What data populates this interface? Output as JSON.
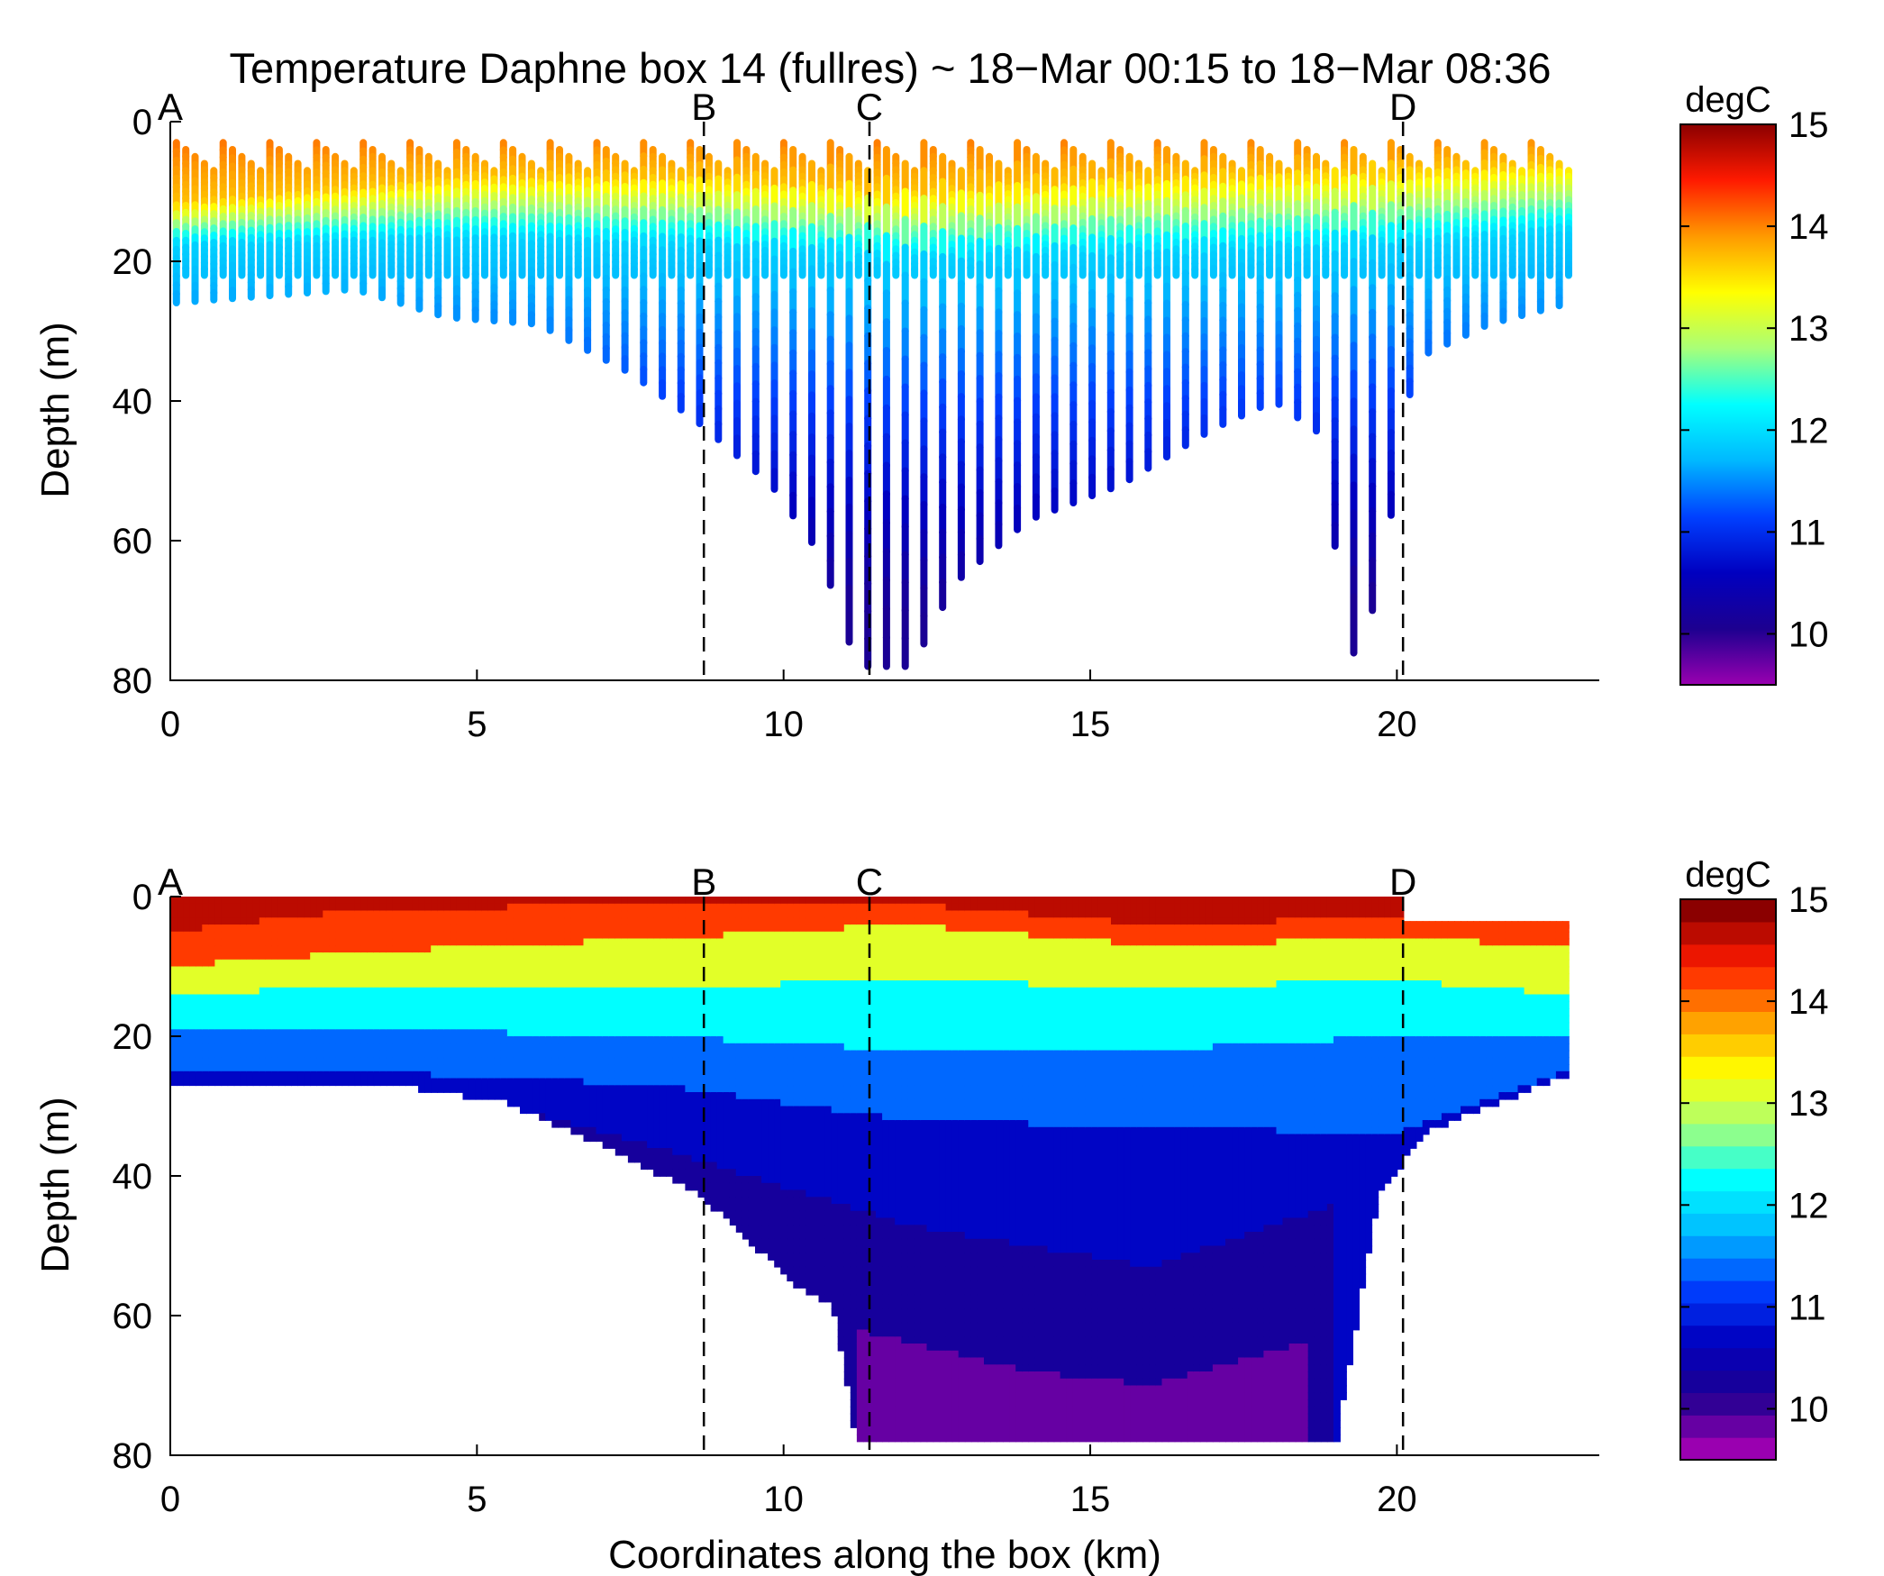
{
  "figure": {
    "title": "Temperature Daphne box 14 (fullres) ~ 18−Mar 00:15 to 18−Mar 08:36",
    "xlabel": "Coordinates along the box (km)",
    "ylabel": "Depth (m)"
  },
  "colors": {
    "jet_stops": [
      "#9a00b0",
      "#1d0090",
      "#0000c0",
      "#0040ff",
      "#00b8ff",
      "#00ffff",
      "#a8ff78",
      "#ffff00",
      "#ff9a00",
      "#ff1a00",
      "#8b0000"
    ],
    "section_lines": "#000000"
  },
  "chart_data": [
    {
      "type": "scatter",
      "panel": "top",
      "description_units": {
        "x": "km",
        "y": "m",
        "color": "degC"
      },
      "xlim": [
        0,
        23.3
      ],
      "ylim": [
        80,
        0
      ],
      "xticks": [
        "0",
        "5",
        "10",
        "15",
        "20"
      ],
      "yticks": [
        "0",
        "20",
        "40",
        "60",
        "80"
      ],
      "colorbar": {
        "label": "degC",
        "range": [
          9.5,
          15
        ],
        "ticks": [
          "15",
          "14",
          "13",
          "12",
          "11",
          "10"
        ],
        "continuous": true
      },
      "section_markers": [
        {
          "label": "A",
          "x": 0
        },
        {
          "label": "B",
          "x": 8.7
        },
        {
          "label": "C",
          "x": 11.4
        },
        {
          "label": "D",
          "x": 20.1
        }
      ],
      "profile_max_depth": [
        {
          "x": 0.0,
          "depth": 26
        },
        {
          "x": 3.0,
          "depth": 24
        },
        {
          "x": 4.5,
          "depth": 28
        },
        {
          "x": 6.0,
          "depth": 29
        },
        {
          "x": 7.5,
          "depth": 36
        },
        {
          "x": 8.6,
          "depth": 43
        },
        {
          "x": 9.8,
          "depth": 52
        },
        {
          "x": 10.6,
          "depth": 62
        },
        {
          "x": 11.2,
          "depth": 78
        },
        {
          "x": 12.1,
          "depth": 78
        },
        {
          "x": 12.8,
          "depth": 66
        },
        {
          "x": 14.0,
          "depth": 57
        },
        {
          "x": 15.5,
          "depth": 52
        },
        {
          "x": 17.0,
          "depth": 44
        },
        {
          "x": 18.0,
          "depth": 40
        },
        {
          "x": 18.8,
          "depth": 45
        },
        {
          "x": 19.2,
          "depth": 78
        },
        {
          "x": 19.7,
          "depth": 68
        },
        {
          "x": 20.3,
          "depth": 34
        },
        {
          "x": 21.5,
          "depth": 29
        },
        {
          "x": 22.8,
          "depth": 26
        }
      ],
      "thermocline": [
        {
          "x": 0,
          "warm_depth": 12,
          "cold_depth": 18
        },
        {
          "x": 5,
          "warm_depth": 8,
          "cold_depth": 17
        },
        {
          "x": 8.7,
          "warm_depth": 8,
          "cold_depth": 18
        },
        {
          "x": 12,
          "warm_depth": 10,
          "cold_depth": 20
        },
        {
          "x": 16,
          "warm_depth": 8,
          "cold_depth": 19
        },
        {
          "x": 20,
          "warm_depth": 7,
          "cold_depth": 18
        },
        {
          "x": 22.8,
          "warm_depth": 6,
          "cold_depth": 16
        }
      ],
      "surface_temp": 14.2,
      "bottom_temp": 10.1
    },
    {
      "type": "heatmap",
      "panel": "bottom",
      "description_units": {
        "x": "km",
        "y": "m",
        "color": "degC"
      },
      "xlim": [
        0,
        23.3
      ],
      "ylim": [
        80,
        0
      ],
      "xticks": [
        "0",
        "5",
        "10",
        "15",
        "20"
      ],
      "yticks": [
        "0",
        "20",
        "40",
        "60",
        "80"
      ],
      "colorbar": {
        "label": "degC",
        "range": [
          9.5,
          15
        ],
        "ticks": [
          "15",
          "14",
          "13",
          "12",
          "11",
          "10"
        ],
        "continuous": false
      },
      "section_markers": [
        {
          "label": "A",
          "x": 0
        },
        {
          "label": "B",
          "x": 8.7
        },
        {
          "label": "C",
          "x": 11.4
        },
        {
          "label": "D",
          "x": 20.1
        }
      ],
      "bottom_outline": [
        {
          "x": 0,
          "depth": 27
        },
        {
          "x": 4.0,
          "depth": 27
        },
        {
          "x": 5.5,
          "depth": 29
        },
        {
          "x": 7.0,
          "depth": 35
        },
        {
          "x": 8.6,
          "depth": 42
        },
        {
          "x": 10.2,
          "depth": 55
        },
        {
          "x": 10.8,
          "depth": 58
        },
        {
          "x": 11.2,
          "depth": 78
        },
        {
          "x": 19.0,
          "depth": 78
        },
        {
          "x": 19.2,
          "depth": 68
        },
        {
          "x": 19.7,
          "depth": 42
        },
        {
          "x": 20.5,
          "depth": 33
        },
        {
          "x": 22.8,
          "depth": 25
        }
      ],
      "isotherms": [
        {
          "temp": 14.5,
          "depth_at": [
            [
              0,
              5
            ],
            [
              3,
              2
            ],
            [
              8,
              1
            ],
            [
              12,
              1
            ],
            [
              16,
              4
            ],
            [
              20,
              3
            ],
            [
              22.8,
              2
            ]
          ]
        },
        {
          "temp": 13.5,
          "depth_at": [
            [
              0,
              10
            ],
            [
              3,
              8
            ],
            [
              8,
              6
            ],
            [
              12,
              4
            ],
            [
              16,
              7
            ],
            [
              20,
              6
            ],
            [
              22.8,
              7
            ]
          ]
        },
        {
          "temp": 12.5,
          "depth_at": [
            [
              0,
              14
            ],
            [
              3,
              13
            ],
            [
              8,
              13
            ],
            [
              12,
              12
            ],
            [
              16,
              13
            ],
            [
              20,
              12
            ],
            [
              22.8,
              14
            ]
          ]
        },
        {
          "temp": 11.5,
          "depth_at": [
            [
              0,
              19
            ],
            [
              3,
              19
            ],
            [
              8,
              20
            ],
            [
              12,
              22
            ],
            [
              16,
              22
            ],
            [
              20,
              20
            ],
            [
              22.8,
              20
            ]
          ]
        },
        {
          "temp": 11.0,
          "depth_at": [
            [
              0,
              25
            ],
            [
              3,
              25
            ],
            [
              8,
              27
            ],
            [
              12,
              32
            ],
            [
              16,
              33
            ],
            [
              20,
              34
            ],
            [
              22.8,
              25
            ]
          ]
        },
        {
          "temp": 10.5,
          "depth_at": [
            [
              5,
              29
            ],
            [
              8,
              36
            ],
            [
              12,
              47
            ],
            [
              16,
              53
            ],
            [
              19,
              44
            ]
          ]
        },
        {
          "temp": 10.0,
          "depth_at": [
            [
              11.2,
              62
            ],
            [
              14,
              68
            ],
            [
              16,
              70
            ],
            [
              18.5,
              64
            ]
          ]
        }
      ]
    }
  ]
}
